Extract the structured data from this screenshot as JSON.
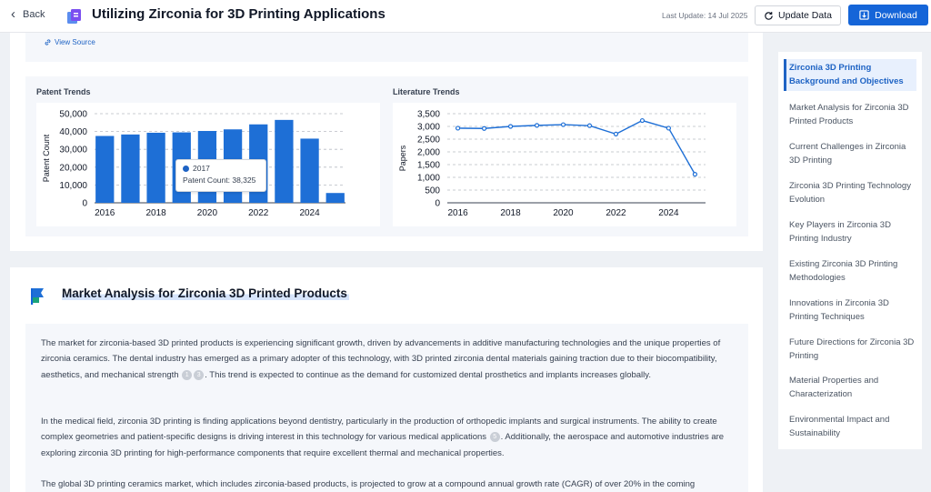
{
  "header": {
    "back_label": "Back",
    "title": "Utilizing Zirconia for 3D Printing Applications",
    "last_update": "Last Update: 14 Jul 2025",
    "update_label": "Update Data",
    "download_label": "Download"
  },
  "source": {
    "view_source_label": "View Source"
  },
  "colors": {
    "accent": "#1565d8",
    "bar": "#1e6fd6",
    "line": "#1e6fd6"
  },
  "chart_data": [
    {
      "type": "bar",
      "title": "Patent Trends",
      "ylabel": "Patent Count",
      "x": [
        2016,
        2017,
        2018,
        2019,
        2020,
        2021,
        2022,
        2023,
        2024,
        2025
      ],
      "x_ticks": [
        "2016",
        "2018",
        "2020",
        "2022",
        "2024"
      ],
      "y_ticks": [
        "50,000",
        "40,000",
        "30,000",
        "20,000",
        "10,000",
        "0"
      ],
      "values": [
        37500,
        38325,
        39300,
        39500,
        40300,
        41200,
        44000,
        46500,
        36000,
        5500
      ],
      "ylim": [
        0,
        50000
      ],
      "grid": true,
      "tooltip": {
        "label": "2017",
        "text": "Patent Count: 38,325"
      }
    },
    {
      "type": "line",
      "title": "Literature Trends",
      "ylabel": "Papers",
      "x": [
        2016,
        2017,
        2018,
        2019,
        2020,
        2021,
        2022,
        2023,
        2024,
        2025
      ],
      "x_ticks": [
        "2016",
        "2018",
        "2020",
        "2022",
        "2024"
      ],
      "y_ticks": [
        "3,500",
        "3,000",
        "2,500",
        "2,000",
        "1,500",
        "1,000",
        "500",
        "0"
      ],
      "values": [
        2930,
        2920,
        3000,
        3040,
        3070,
        3030,
        2700,
        3230,
        2930,
        1120
      ],
      "ylim": [
        0,
        3500
      ],
      "grid": true
    }
  ],
  "section": {
    "title": "Market Analysis for Zirconia 3D Printed Products",
    "p1_a": "The market for zirconia-based 3D printed products is experiencing significant growth, driven by advancements in additive manufacturing technologies and the unique properties of zirconia ceramics. The dental industry has emerged as a primary adopter of this technology, with 3D printed zirconia dental materials gaining traction due to their biocompatibility, aesthetics, and mechanical strength",
    "p1_b": ". This trend is expected to continue as the demand for customized dental prosthetics and implants increases globally.",
    "p1_cites": [
      "1",
      "3"
    ],
    "p2_a": "In the medical field, zirconia 3D printing is finding applications beyond dentistry, particularly in the production of orthopedic implants and surgical instruments. The ability to create complex geometries and patient-specific designs is driving interest in this technology for various medical applications",
    "p2_b": ". Additionally, the aerospace and automotive industries are exploring zirconia 3D printing for high-performance components that require excellent thermal and mechanical properties.",
    "p2_cite": "5",
    "p3": "The global 3D printing ceramics market, which includes zirconia-based products, is projected to grow at a compound annual growth rate (CAGR) of over 20% in the coming"
  },
  "toc": [
    "Zirconia 3D Printing Background and Objectives",
    "Market Analysis for Zirconia 3D Printed Products",
    "Current Challenges in Zirconia 3D Printing",
    "Zirconia 3D Printing Technology Evolution",
    "Key Players in Zirconia 3D Printing Industry",
    "Existing Zirconia 3D Printing Methodologies",
    "Innovations in Zirconia 3D Printing Techniques",
    "Future Directions for Zirconia 3D Printing",
    "Material Properties and Characterization",
    "Environmental Impact and Sustainability"
  ]
}
